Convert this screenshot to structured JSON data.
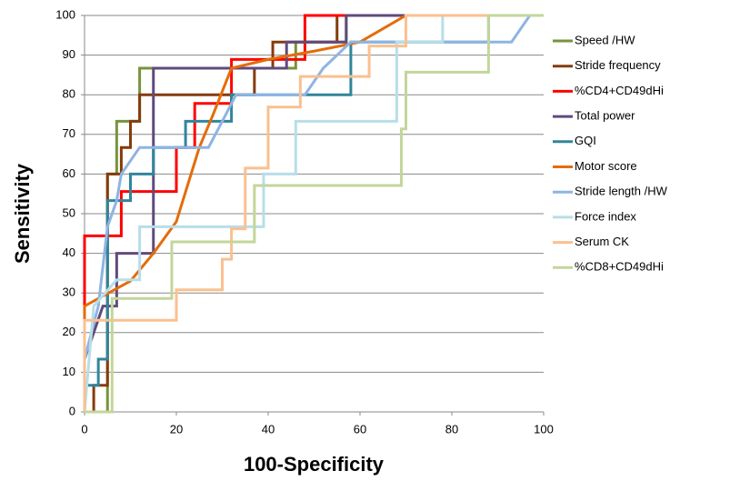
{
  "chart_data": {
    "type": "line",
    "xlabel": "100-Specificity",
    "ylabel": "Sensitivity",
    "xlim": [
      0,
      100
    ],
    "ylim": [
      0,
      100
    ],
    "xticks": [
      0,
      20,
      40,
      60,
      80,
      100
    ],
    "yticks": [
      0,
      10,
      20,
      30,
      40,
      50,
      60,
      70,
      80,
      90,
      100
    ],
    "grid": true,
    "legend": "right",
    "series": [
      {
        "name": "Speed /HW",
        "color": "#77933c",
        "x": [
          0,
          5,
          5,
          7,
          7,
          12,
          12,
          46,
          46,
          57,
          57,
          100
        ],
        "values": [
          0,
          0,
          60,
          60,
          73.3,
          73.3,
          86.7,
          86.7,
          93.3,
          93.3,
          100,
          100
        ]
      },
      {
        "name": "Stride frequency",
        "color": "#843c0c",
        "x": [
          0,
          2,
          2,
          5,
          5,
          8,
          8,
          10,
          10,
          12,
          12,
          37,
          37,
          41,
          41,
          55,
          55,
          100
        ],
        "values": [
          0,
          0,
          6.7,
          6.7,
          60,
          60,
          66.7,
          66.7,
          73.3,
          73.3,
          80,
          80,
          86.7,
          86.7,
          93.3,
          93.3,
          100,
          100
        ]
      },
      {
        "name": "%CD4+CD49dHi",
        "color": "#ff0000",
        "x": [
          0,
          0,
          8,
          8,
          20,
          20,
          24,
          24,
          32,
          32,
          48,
          48,
          100
        ],
        "values": [
          0,
          44.4,
          44.4,
          55.6,
          55.6,
          66.7,
          66.7,
          77.8,
          77.8,
          88.9,
          88.9,
          100,
          100
        ]
      },
      {
        "name": "Total power",
        "color": "#604a7b",
        "x": [
          0,
          4,
          7,
          7,
          15,
          15,
          44,
          44,
          57,
          57,
          100
        ],
        "values": [
          13.3,
          26.7,
          26.7,
          40,
          40,
          86.7,
          86.7,
          93.3,
          93.3,
          100,
          100
        ]
      },
      {
        "name": "GQI",
        "color": "#31859c",
        "x": [
          0,
          3,
          3,
          5,
          5,
          10,
          10,
          15,
          15,
          22,
          22,
          32,
          32,
          58,
          58,
          88,
          88,
          100
        ],
        "values": [
          6.7,
          6.7,
          13.3,
          13.3,
          53.3,
          53.3,
          60,
          60,
          66.7,
          66.7,
          73.3,
          73.3,
          80,
          80,
          93.3,
          93.3,
          100,
          100
        ]
      },
      {
        "name": "Motor score",
        "color": "#e46c0a",
        "x": [
          0,
          0,
          10,
          15,
          20,
          25,
          28,
          32,
          40,
          50,
          60,
          70,
          100
        ],
        "values": [
          0,
          26.7,
          33,
          40,
          48,
          66.7,
          75,
          86.7,
          88.9,
          91,
          93.3,
          100,
          100
        ]
      },
      {
        "name": "Stride length /HW",
        "color": "#8eb4e3",
        "x": [
          0,
          3,
          5,
          7,
          8,
          12,
          27,
          30,
          33,
          48,
          52,
          58,
          93,
          97,
          100
        ],
        "values": [
          13.3,
          26.7,
          46.7,
          53.3,
          60,
          66.7,
          66.7,
          73.3,
          80,
          80,
          86.7,
          93.3,
          93.3,
          100,
          100
        ]
      },
      {
        "name": "Force index",
        "color": "#b7dee8",
        "x": [
          0,
          2,
          7,
          12,
          12,
          39,
          39,
          46,
          46,
          68,
          68,
          78,
          78,
          100
        ],
        "values": [
          0,
          26.7,
          33.3,
          33.3,
          46.7,
          46.7,
          60,
          60,
          73.3,
          73.3,
          93.3,
          93.3,
          100,
          100
        ]
      },
      {
        "name": "Serum CK",
        "color": "#fac090",
        "x": [
          0,
          0,
          20,
          20,
          30,
          30,
          32,
          32,
          35,
          35,
          40,
          40,
          47,
          47,
          62,
          62,
          70,
          70,
          100
        ],
        "values": [
          0,
          23.1,
          23.1,
          30.8,
          30.8,
          38.5,
          38.5,
          46.2,
          46.2,
          61.5,
          61.5,
          76.9,
          76.9,
          84.6,
          84.6,
          92.3,
          92.3,
          100,
          100
        ]
      },
      {
        "name": "%CD8+CD49dHi",
        "color": "#c3d69b",
        "x": [
          0,
          6,
          6,
          19,
          19,
          37,
          37,
          69,
          69,
          70,
          70,
          88,
          88,
          100
        ],
        "values": [
          0,
          0,
          28.6,
          28.6,
          42.9,
          42.9,
          57.1,
          57.1,
          71.4,
          71.4,
          85.7,
          85.7,
          100,
          100
        ]
      }
    ]
  }
}
